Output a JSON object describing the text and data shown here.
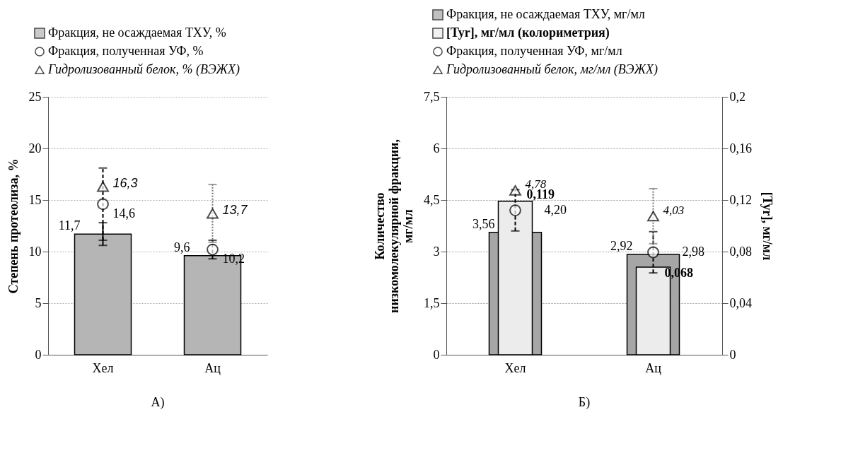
{
  "chart_data": [
    {
      "type": "bar",
      "categories": [
        "Хел",
        "Ац"
      ],
      "ylabel": "Степень протеолиза, %",
      "ylim": [
        0,
        25
      ],
      "yticks": [
        0,
        5,
        10,
        15,
        20,
        25
      ],
      "grid": "y",
      "legend": "top left",
      "annotations": [
        "А)"
      ],
      "series": [
        {
          "name": "Фракция, не осаждаемая ТХУ, %",
          "color": "#b5b5b5",
          "values": [
            11.7,
            9.6
          ],
          "errors": [
            1.1,
            null
          ],
          "value_labels": [
            "11,7",
            "9,6"
          ]
        },
        {
          "name": "Фракция, полученная УФ, %",
          "type": "scatter",
          "marker": "circle",
          "color": "#000000",
          "values": [
            14.6,
            10.2
          ],
          "errors": [
            3.5,
            0.9
          ],
          "value_labels": [
            "14,6",
            "10,2"
          ]
        },
        {
          "name": "Гидролизованный белок, % (ВЭЖХ)",
          "type": "scatter",
          "marker": "triangle",
          "color": "#000000",
          "values": [
            16.3,
            13.7
          ],
          "errors": [
            null,
            2.8
          ],
          "value_labels": [
            "16,3",
            "13,7"
          ]
        }
      ]
    },
    {
      "type": "bar",
      "categories": [
        "Хел",
        "Ац"
      ],
      "ylabel": "Количество низкомолекулярной фракции, мг/мл",
      "y2label": "[Tyr], мг/мл",
      "ylim": [
        0,
        7.5
      ],
      "yticks": [
        0,
        {
          "value": 1.5,
          "label": "1,5"
        },
        3,
        {
          "value": 4.5,
          "label": "4,5"
        },
        6,
        {
          "value": 7.5,
          "label": "7,5"
        }
      ],
      "y2lim": [
        0,
        0.2
      ],
      "y2ticks": [
        0,
        {
          "value": 0.04,
          "label": "0,04"
        },
        {
          "value": 0.08,
          "label": "0,08"
        },
        {
          "value": 0.12,
          "label": "0,12"
        },
        {
          "value": 0.16,
          "label": "0,16"
        },
        {
          "value": 0.2,
          "label": "0,2"
        }
      ],
      "grid": "y",
      "legend": "top left",
      "annotations": [
        "Б)"
      ],
      "series": [
        {
          "name": "Фракция, не осаждаемая ТХУ, мг/мл",
          "color": "#a6a6a6",
          "values": [
            3.56,
            2.92
          ],
          "value_labels": [
            "3,56",
            "2,92"
          ]
        },
        {
          "name": "[Tyr], мг/мл (колориметрия)",
          "axis": "y2",
          "color": "#ececec",
          "values": [
            0.119,
            0.068
          ],
          "value_labels": [
            "0,119",
            "0,068"
          ]
        },
        {
          "name": "Фракция, полученная УФ, мг/мл",
          "type": "scatter",
          "marker": "circle",
          "color": "#000000",
          "values": [
            4.2,
            2.98
          ],
          "errors": [
            0.6,
            0.6
          ],
          "value_labels": [
            "4,20",
            "2,98"
          ]
        },
        {
          "name": "Гидролизованный белок, мг/мл (ВЭЖХ)",
          "type": "scatter",
          "marker": "triangle",
          "color": "#000000",
          "values": [
            4.78,
            4.03
          ],
          "errors": [
            null,
            0.8
          ],
          "value_labels": [
            "4,78",
            "4,03"
          ]
        }
      ]
    }
  ]
}
